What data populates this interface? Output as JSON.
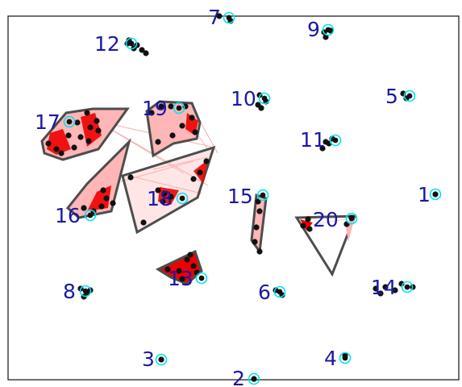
{
  "colors": {
    "frame": "#222222",
    "label": "#1919a6",
    "node_ring": "#00e5ee",
    "point": "#111111",
    "hull_fill": "#ffb6b6",
    "hull_fill_dark": "#ee0000",
    "hull_edge": "#4d4d4d",
    "link": "#f4a6a6"
  },
  "nodes": [
    {
      "id": "1",
      "label": "1"
    },
    {
      "id": "2",
      "label": "2"
    },
    {
      "id": "3",
      "label": "3"
    },
    {
      "id": "4",
      "label": "4"
    },
    {
      "id": "5",
      "label": "5"
    },
    {
      "id": "6",
      "label": "6"
    },
    {
      "id": "7",
      "label": "7"
    },
    {
      "id": "8",
      "label": "8"
    },
    {
      "id": "9",
      "label": "9"
    },
    {
      "id": "10",
      "label": "10"
    },
    {
      "id": "11",
      "label": "11"
    },
    {
      "id": "12",
      "label": "12"
    },
    {
      "id": "13",
      "label": "13"
    },
    {
      "id": "14",
      "label": "14"
    },
    {
      "id": "15",
      "label": "15"
    },
    {
      "id": "16",
      "label": "16"
    },
    {
      "id": "17",
      "label": "17"
    },
    {
      "id": "18",
      "label": "18"
    },
    {
      "id": "19",
      "label": "19"
    },
    {
      "id": "20",
      "label": "20"
    }
  ]
}
